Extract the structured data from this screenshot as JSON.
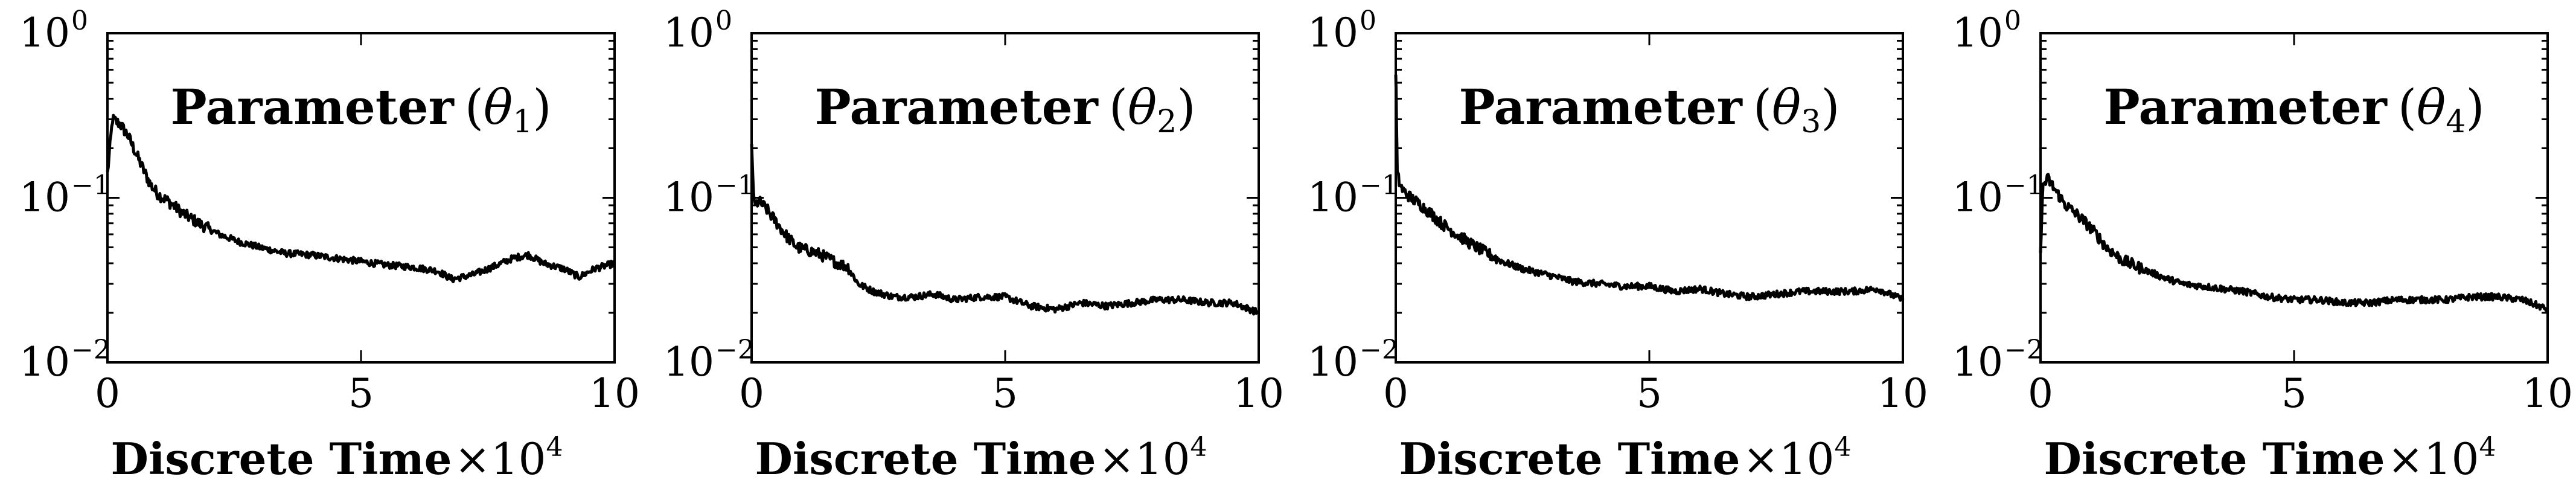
{
  "chart_data": [
    {
      "type": "line",
      "title": {
        "prefix": "Parameter",
        "symbol": "θ",
        "subscript": "1"
      },
      "xlabel": "Discrete Time",
      "x_multiplier": {
        "base": "×10",
        "exp": "4"
      },
      "xlim": [
        0,
        10
      ],
      "ylim": [
        0.01,
        1
      ],
      "yscale": "log",
      "xticks": [
        "0",
        "5",
        "10"
      ],
      "yticks": [
        {
          "base": "10",
          "exp": "0"
        },
        {
          "base": "10",
          "exp": "−1"
        },
        {
          "base": "10",
          "exp": "−2"
        }
      ],
      "series": [
        {
          "x": [
            0.0,
            0.1,
            0.25,
            0.4,
            0.55,
            0.7,
            0.85,
            1.0,
            1.2,
            1.5,
            1.8,
            2.2,
            2.6,
            3.0,
            3.5,
            4.0,
            4.5,
            5.0,
            5.5,
            6.0,
            6.5,
            6.8,
            7.2,
            7.6,
            8.0,
            8.3,
            8.6,
            9.0,
            9.3,
            9.6,
            10.0
          ],
          "y": [
            0.14,
            0.3,
            0.28,
            0.24,
            0.19,
            0.15,
            0.12,
            0.105,
            0.095,
            0.08,
            0.07,
            0.06,
            0.054,
            0.05,
            0.046,
            0.045,
            0.043,
            0.041,
            0.039,
            0.038,
            0.036,
            0.032,
            0.034,
            0.038,
            0.043,
            0.045,
            0.04,
            0.037,
            0.033,
            0.037,
            0.04
          ]
        }
      ]
    },
    {
      "type": "line",
      "title": {
        "prefix": "Parameter",
        "symbol": "θ",
        "subscript": "2"
      },
      "xlabel": "Discrete Time",
      "x_multiplier": {
        "base": "×10",
        "exp": "4"
      },
      "xlim": [
        0,
        10
      ],
      "ylim": [
        0.01,
        1
      ],
      "yscale": "log",
      "xticks": [
        "0",
        "5",
        "10"
      ],
      "yticks": [
        {
          "base": "10",
          "exp": "0"
        },
        {
          "base": "10",
          "exp": "−1"
        },
        {
          "base": "10",
          "exp": "−2"
        }
      ],
      "series": [
        {
          "x": [
            0.0,
            0.05,
            0.15,
            0.3,
            0.5,
            0.7,
            0.9,
            1.1,
            1.3,
            1.5,
            1.7,
            1.9,
            2.1,
            2.4,
            2.8,
            3.2,
            3.6,
            4.0,
            4.5,
            5.0,
            5.5,
            6.0,
            6.5,
            7.0,
            7.5,
            8.0,
            8.5,
            9.0,
            9.5,
            10.0
          ],
          "y": [
            0.2,
            0.09,
            0.095,
            0.085,
            0.07,
            0.058,
            0.05,
            0.048,
            0.046,
            0.043,
            0.04,
            0.038,
            0.03,
            0.027,
            0.025,
            0.025,
            0.026,
            0.024,
            0.025,
            0.025,
            0.022,
            0.021,
            0.023,
            0.022,
            0.023,
            0.024,
            0.024,
            0.023,
            0.023,
            0.02
          ]
        }
      ]
    },
    {
      "type": "line",
      "title": {
        "prefix": "Parameter",
        "symbol": "θ",
        "subscript": "3"
      },
      "xlabel": "Discrete Time",
      "x_multiplier": {
        "base": "×10",
        "exp": "4"
      },
      "xlim": [
        0,
        10
      ],
      "ylim": [
        0.01,
        1
      ],
      "yscale": "log",
      "xticks": [
        "0",
        "5",
        "10"
      ],
      "yticks": [
        {
          "base": "10",
          "exp": "0"
        },
        {
          "base": "10",
          "exp": "−1"
        },
        {
          "base": "10",
          "exp": "−2"
        }
      ],
      "series": [
        {
          "x": [
            0.0,
            0.03,
            0.08,
            0.15,
            0.3,
            0.5,
            0.7,
            0.9,
            1.2,
            1.5,
            1.8,
            2.1,
            2.5,
            3.0,
            3.5,
            4.0,
            4.5,
            5.0,
            5.5,
            6.0,
            6.5,
            7.0,
            7.5,
            8.0,
            8.5,
            9.0,
            9.5,
            10.0
          ],
          "y": [
            0.6,
            0.14,
            0.12,
            0.11,
            0.1,
            0.09,
            0.08,
            0.07,
            0.06,
            0.052,
            0.046,
            0.041,
            0.037,
            0.034,
            0.031,
            0.03,
            0.029,
            0.029,
            0.027,
            0.028,
            0.026,
            0.025,
            0.026,
            0.027,
            0.027,
            0.027,
            0.028,
            0.024
          ]
        }
      ]
    },
    {
      "type": "line",
      "title": {
        "prefix": "Parameter",
        "symbol": "θ",
        "subscript": "4"
      },
      "xlabel": "Discrete Time",
      "x_multiplier": {
        "base": "×10",
        "exp": "4"
      },
      "xlim": [
        0,
        10
      ],
      "ylim": [
        0.01,
        1
      ],
      "yscale": "log",
      "xticks": [
        "0",
        "5",
        "10"
      ],
      "yticks": [
        {
          "base": "10",
          "exp": "0"
        },
        {
          "base": "10",
          "exp": "−1"
        },
        {
          "base": "10",
          "exp": "−2"
        }
      ],
      "series": [
        {
          "x": [
            0.0,
            0.05,
            0.15,
            0.3,
            0.5,
            0.7,
            0.9,
            1.1,
            1.3,
            1.6,
            2.0,
            2.4,
            2.8,
            3.2,
            3.6,
            4.0,
            4.5,
            5.0,
            5.5,
            6.0,
            6.5,
            7.0,
            7.5,
            8.0,
            8.5,
            9.0,
            9.5,
            10.0
          ],
          "y": [
            0.05,
            0.12,
            0.13,
            0.11,
            0.09,
            0.08,
            0.07,
            0.06,
            0.05,
            0.042,
            0.037,
            0.033,
            0.03,
            0.029,
            0.028,
            0.027,
            0.025,
            0.024,
            0.024,
            0.023,
            0.023,
            0.024,
            0.024,
            0.024,
            0.025,
            0.025,
            0.024,
            0.021
          ]
        }
      ]
    }
  ]
}
